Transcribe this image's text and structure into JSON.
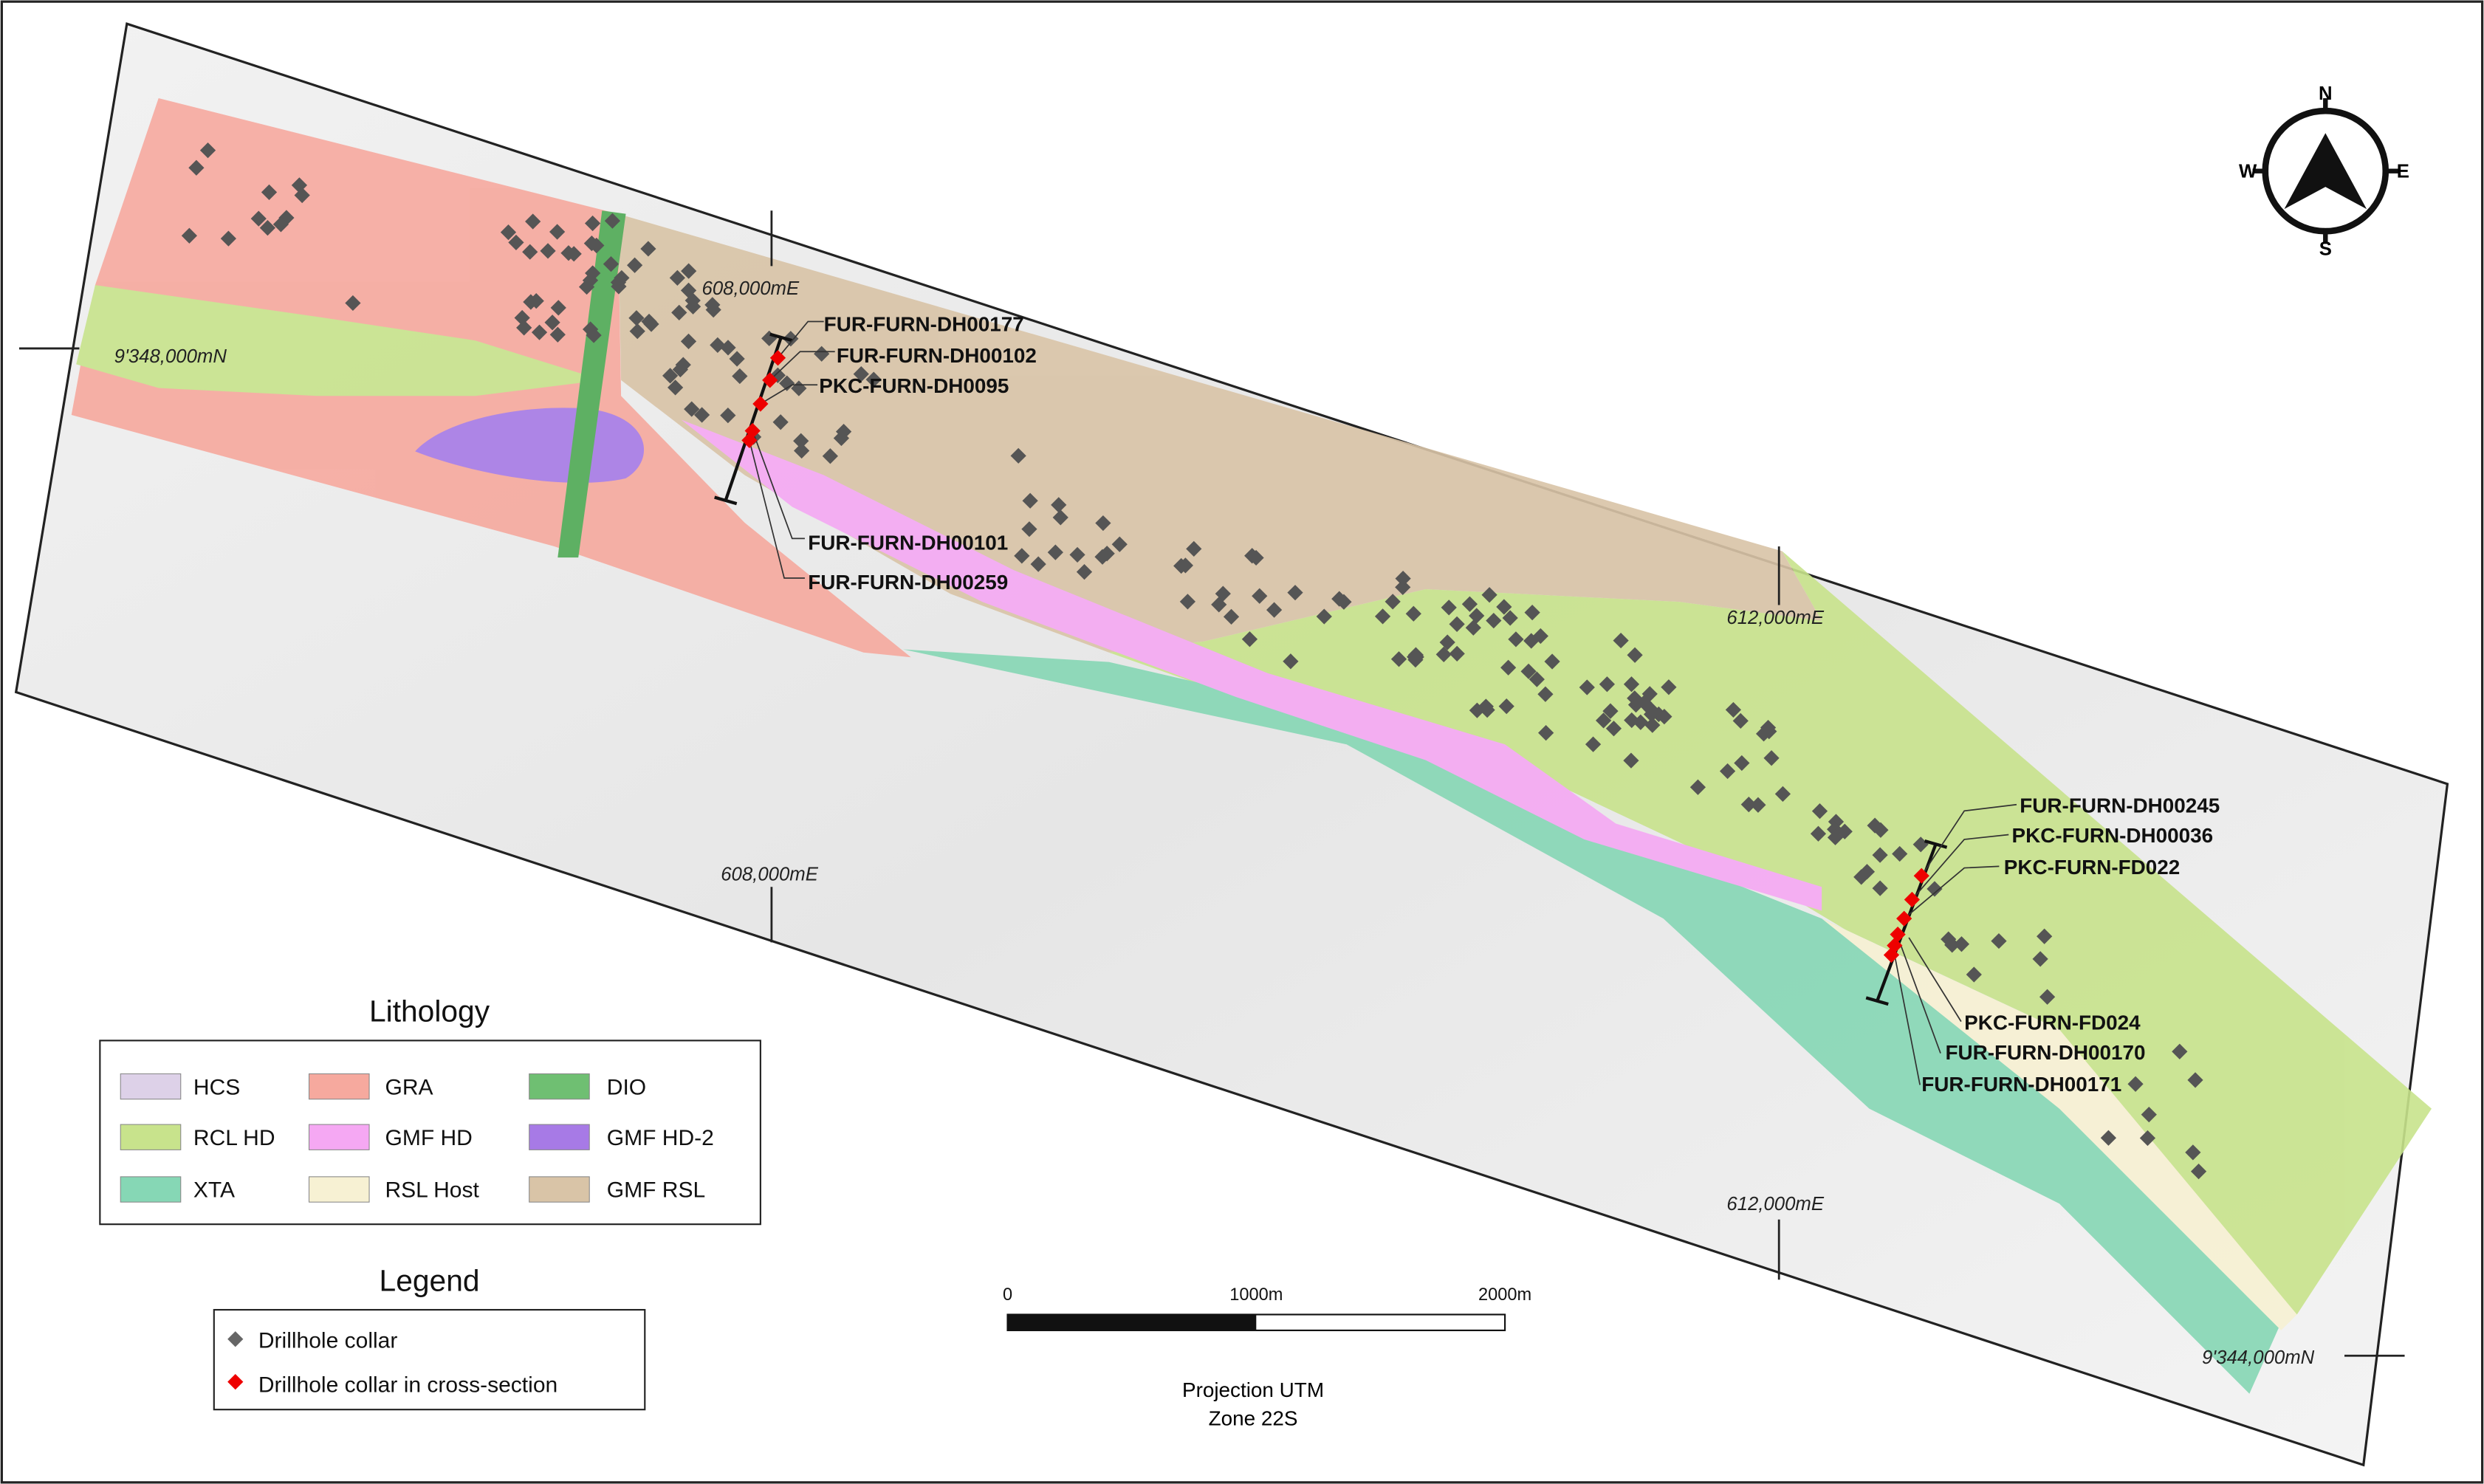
{
  "map": {
    "grid_labels": [
      "608,000mE",
      "9'348,000mN",
      "612,000mE",
      "608,000mE",
      "612,000mE",
      "9'344,000mN"
    ],
    "drillholes": [
      "FUR-FURN-DH00177",
      "FUR-FURN-DH00102",
      "PKC-FURN-DH0095",
      "FUR-FURN-DH00101",
      "FUR-FURN-DH00259",
      "FUR-FURN-DH00245",
      "PKC-FURN-DH00036",
      "PKC-FURN-FD022",
      "PKC-FURN-FD024",
      "FUR-FURN-DH00170",
      "FUR-FURN-DH00171"
    ],
    "compass": {
      "north": "N",
      "east": "E",
      "south": "S",
      "west": "W"
    },
    "lithology": {
      "title": "Lithology",
      "items": [
        {
          "label": "HCS",
          "color": "#ddd1e8"
        },
        {
          "label": "GRA",
          "color": "#f6a99e"
        },
        {
          "label": "DIO",
          "color": "#6fbf72"
        },
        {
          "label": "RCL HD",
          "color": "#c8e38c"
        },
        {
          "label": "GMF HD",
          "color": "#f5a8f3"
        },
        {
          "label": "GMF HD-2",
          "color": "#a77ae6"
        },
        {
          "label": "XTA",
          "color": "#86d7b5"
        },
        {
          "label": "RSL Host",
          "color": "#f7f1d3"
        },
        {
          "label": "GMF RSL",
          "color": "#d9c4a7"
        }
      ]
    },
    "legend": {
      "title": "Legend",
      "items": [
        "Drillhole collar",
        "Drillhole collar in cross-section"
      ]
    },
    "scale_bar": {
      "labels": [
        "0",
        "1000m",
        "2000m"
      ]
    },
    "projection": [
      "Projection UTM",
      "Zone 22S"
    ]
  }
}
